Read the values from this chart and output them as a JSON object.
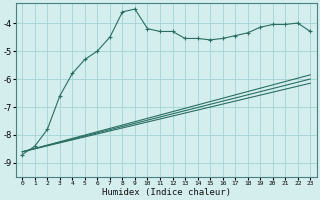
{
  "xlabel": "Humidex (Indice chaleur)",
  "background_color": "#d4eeee",
  "grid_color": "#a8d8d8",
  "line_color": "#2a6e62",
  "xlim": [
    -0.5,
    23.5
  ],
  "ylim": [
    -9.5,
    -3.3
  ],
  "yticks": [
    -9,
    -8,
    -7,
    -6,
    -5,
    -4
  ],
  "xticks": [
    0,
    1,
    2,
    3,
    4,
    5,
    6,
    7,
    8,
    9,
    10,
    11,
    12,
    13,
    14,
    15,
    16,
    17,
    18,
    19,
    20,
    21,
    22,
    23
  ],
  "series1_x": [
    0,
    1,
    2,
    3,
    4,
    5,
    6,
    7,
    8,
    9,
    10,
    11,
    12,
    13,
    14,
    15,
    16,
    17,
    18,
    19,
    20,
    21,
    22,
    23
  ],
  "series1_y": [
    -8.7,
    -8.4,
    -7.8,
    -6.6,
    -5.8,
    -5.3,
    -5.0,
    -4.5,
    -3.6,
    -3.5,
    -4.2,
    -4.3,
    -4.3,
    -4.55,
    -4.55,
    -4.6,
    -4.55,
    -4.45,
    -4.35,
    -4.15,
    -4.05,
    -4.05,
    -4.0,
    -4.3
  ],
  "series2_x": [
    0,
    23
  ],
  "series2_y": [
    -8.6,
    -5.85
  ],
  "series3_x": [
    0,
    23
  ],
  "series3_y": [
    -8.6,
    -6.0
  ],
  "series4_x": [
    0,
    23
  ],
  "series4_y": [
    -8.6,
    -6.15
  ]
}
